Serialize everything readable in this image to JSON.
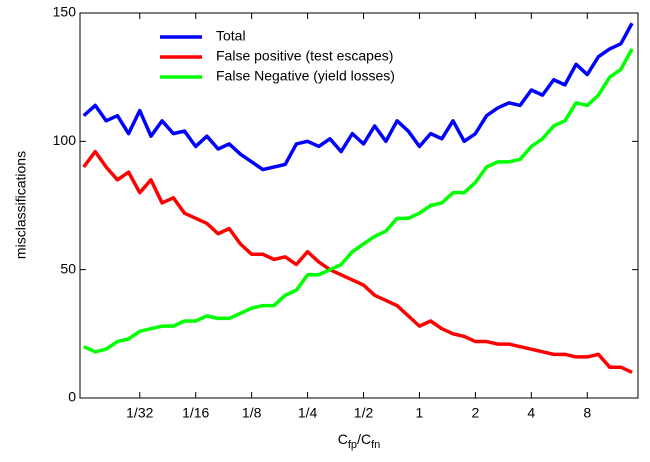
{
  "chart_data": {
    "type": "line",
    "xscale": "log",
    "x": [
      0.0156,
      0.018,
      0.0206,
      0.0237,
      0.0272,
      0.03125,
      0.0359,
      0.0412,
      0.0474,
      0.0544,
      0.0625,
      0.0718,
      0.0825,
      0.0947,
      0.1088,
      0.125,
      0.1436,
      0.1649,
      0.1895,
      0.2176,
      0.25,
      0.2872,
      0.3299,
      0.3789,
      0.4353,
      0.5,
      0.5743,
      0.6598,
      0.7579,
      0.8706,
      1,
      1.1487,
      1.3195,
      1.5157,
      1.7411,
      2,
      2.2974,
      2.639,
      3.0314,
      3.4822,
      4,
      4.5948,
      5.278,
      6.0629,
      6.9644,
      8,
      9.1896,
      10.556,
      12.126,
      13.929
    ],
    "series": [
      {
        "name": "Total",
        "color": "#0000ff",
        "values": [
          110,
          114,
          108,
          110,
          103,
          112,
          102,
          108,
          103,
          104,
          98,
          102,
          97,
          99,
          95,
          92,
          89,
          90,
          91,
          99,
          100,
          98,
          101,
          96,
          103,
          99,
          106,
          100,
          108,
          104,
          98,
          103,
          101,
          108,
          100,
          103,
          110,
          113,
          115,
          114,
          120,
          118,
          124,
          122,
          130,
          126,
          133,
          136,
          138,
          146
        ]
      },
      {
        "name": "False positive (test escapes)",
        "color": "#ff0000",
        "values": [
          90,
          96,
          90,
          85,
          88,
          80,
          85,
          76,
          78,
          72,
          70,
          68,
          64,
          66,
          60,
          56,
          56,
          54,
          55,
          52,
          57,
          53,
          50,
          48,
          46,
          44,
          40,
          38,
          36,
          32,
          28,
          30,
          27,
          25,
          24,
          22,
          22,
          21,
          21,
          20,
          19,
          18,
          17,
          17,
          16,
          16,
          17,
          12,
          12,
          10
        ]
      },
      {
        "name": "False Negative (yield losses)",
        "color": "#00ff00",
        "values": [
          20,
          18,
          19,
          22,
          23,
          26,
          27,
          28,
          28,
          30,
          30,
          32,
          31,
          31,
          33,
          35,
          36,
          36,
          40,
          42,
          48,
          48,
          50,
          52,
          57,
          60,
          63,
          65,
          70,
          70,
          72,
          75,
          76,
          80,
          80,
          84,
          90,
          92,
          92,
          93,
          98,
          101,
          106,
          108,
          115,
          114,
          118,
          125,
          128,
          136
        ]
      }
    ],
    "xlim": [
      0.0149,
      15.0
    ],
    "xticks": [
      {
        "value": 0.03125,
        "label": "1/32"
      },
      {
        "value": 0.0625,
        "label": "1/16"
      },
      {
        "value": 0.125,
        "label": "1/8"
      },
      {
        "value": 0.25,
        "label": "1/4"
      },
      {
        "value": 0.5,
        "label": "1/2"
      },
      1,
      2,
      4,
      8
    ],
    "ylim": [
      0,
      150
    ],
    "yticks": [
      0,
      50,
      100,
      150
    ],
    "ylabel": "misclassifications",
    "xlabel": [
      "C",
      "fp",
      "/C",
      "fn"
    ],
    "legend": "upper left"
  }
}
